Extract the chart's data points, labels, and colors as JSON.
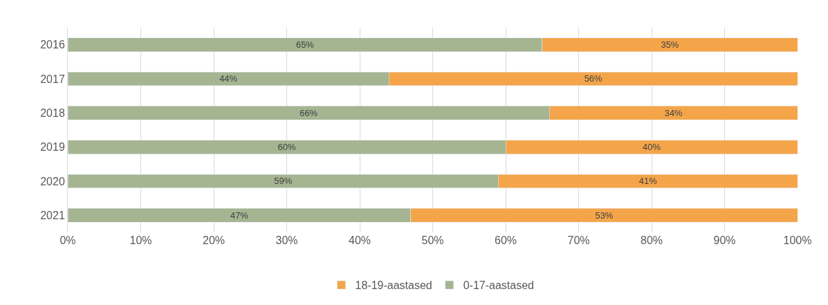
{
  "chart_data": {
    "type": "bar",
    "orientation": "horizontal",
    "stacked": true,
    "categories": [
      "2016",
      "2017",
      "2018",
      "2019",
      "2020",
      "2021"
    ],
    "series": [
      {
        "name": "0-17-aastased",
        "color": "#a5b592",
        "values": [
          65,
          44,
          66,
          60,
          59,
          47
        ],
        "value_labels": [
          "65%",
          "44%",
          "66%",
          "60%",
          "59%",
          "47%"
        ]
      },
      {
        "name": "18-19-aastased",
        "color": "#f4a54a",
        "values": [
          35,
          56,
          34,
          40,
          41,
          53
        ],
        "value_labels": [
          "35%",
          "56%",
          "34%",
          "40%",
          "41%",
          "53%"
        ]
      }
    ],
    "xlim": [
      0,
      100
    ],
    "xticks": [
      {
        "value": 0,
        "label": "0%"
      },
      {
        "value": 10,
        "label": "10%"
      },
      {
        "value": 20,
        "label": "20%"
      },
      {
        "value": 30,
        "label": "30%"
      },
      {
        "value": 40,
        "label": "40%"
      },
      {
        "value": 50,
        "label": "50%"
      },
      {
        "value": 60,
        "label": "60%"
      },
      {
        "value": 70,
        "label": "70%"
      },
      {
        "value": 80,
        "label": "80%"
      },
      {
        "value": 90,
        "label": "90%"
      },
      {
        "value": 100,
        "label": "100%"
      }
    ],
    "grid": "x",
    "legend": "bottom"
  }
}
